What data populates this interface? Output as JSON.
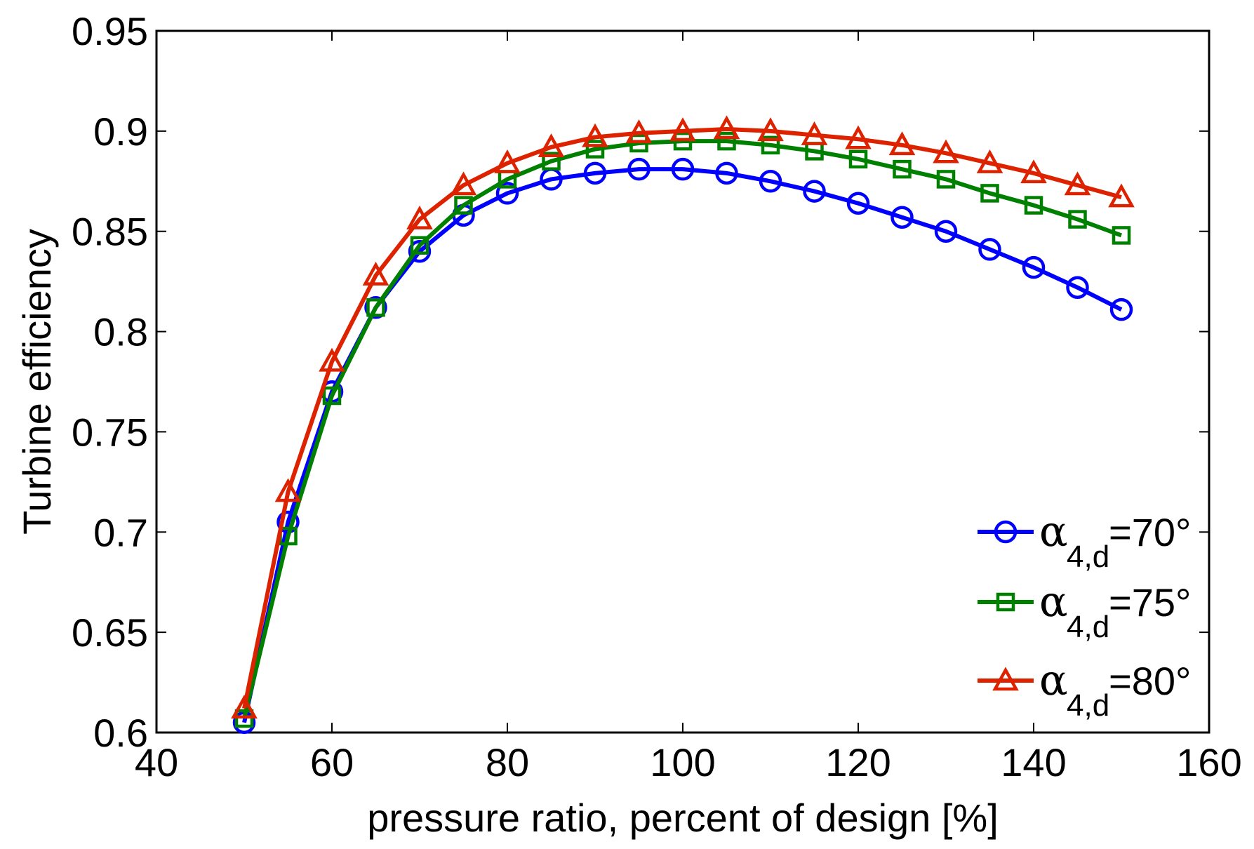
{
  "chart_data": {
    "type": "line",
    "title": "",
    "xlabel": "pressure ratio, percent of design [%]",
    "ylabel": "Turbine efficiency",
    "xlim": [
      40,
      160
    ],
    "ylim": [
      0.6,
      0.95
    ],
    "xticks": [
      40,
      60,
      80,
      100,
      120,
      140,
      160
    ],
    "yticks": [
      0.6,
      0.65,
      0.7,
      0.75,
      0.8,
      0.85,
      0.9,
      0.95
    ],
    "xtick_labels": [
      "40",
      "60",
      "80",
      "100",
      "120",
      "140",
      "160"
    ],
    "ytick_labels": [
      "0.6",
      "0.65",
      "0.7",
      "0.75",
      "0.8",
      "0.85",
      "0.9",
      "0.95"
    ],
    "grid": false,
    "legend_position": "bottom-right",
    "x": [
      50,
      55,
      60,
      65,
      70,
      75,
      80,
      85,
      90,
      95,
      100,
      105,
      110,
      115,
      120,
      125,
      130,
      135,
      140,
      145,
      150
    ],
    "series": [
      {
        "name": "α4,d=70°",
        "symbol": "α",
        "subscript": "4,d",
        "value_text": "=70°",
        "color": "#0000ff",
        "marker": "circle",
        "values": [
          0.605,
          0.705,
          0.77,
          0.812,
          0.84,
          0.858,
          0.869,
          0.876,
          0.879,
          0.881,
          0.881,
          0.879,
          0.875,
          0.87,
          0.864,
          0.857,
          0.85,
          0.841,
          0.832,
          0.822,
          0.811
        ]
      },
      {
        "name": "α4,d=75°",
        "symbol": "α",
        "subscript": "4,d",
        "value_text": "=75°",
        "color": "#008000",
        "marker": "square",
        "values": [
          0.607,
          0.698,
          0.768,
          0.812,
          0.843,
          0.863,
          0.876,
          0.885,
          0.891,
          0.894,
          0.895,
          0.895,
          0.893,
          0.89,
          0.886,
          0.881,
          0.876,
          0.869,
          0.863,
          0.856,
          0.848
        ]
      },
      {
        "name": "α4,d=80°",
        "symbol": "α",
        "subscript": "4,d",
        "value_text": "=80°",
        "color": "#dd2200",
        "marker": "triangle",
        "values": [
          0.612,
          0.72,
          0.785,
          0.828,
          0.856,
          0.873,
          0.884,
          0.892,
          0.897,
          0.899,
          0.9,
          0.901,
          0.9,
          0.898,
          0.896,
          0.893,
          0.889,
          0.884,
          0.879,
          0.873,
          0.867
        ]
      }
    ]
  }
}
